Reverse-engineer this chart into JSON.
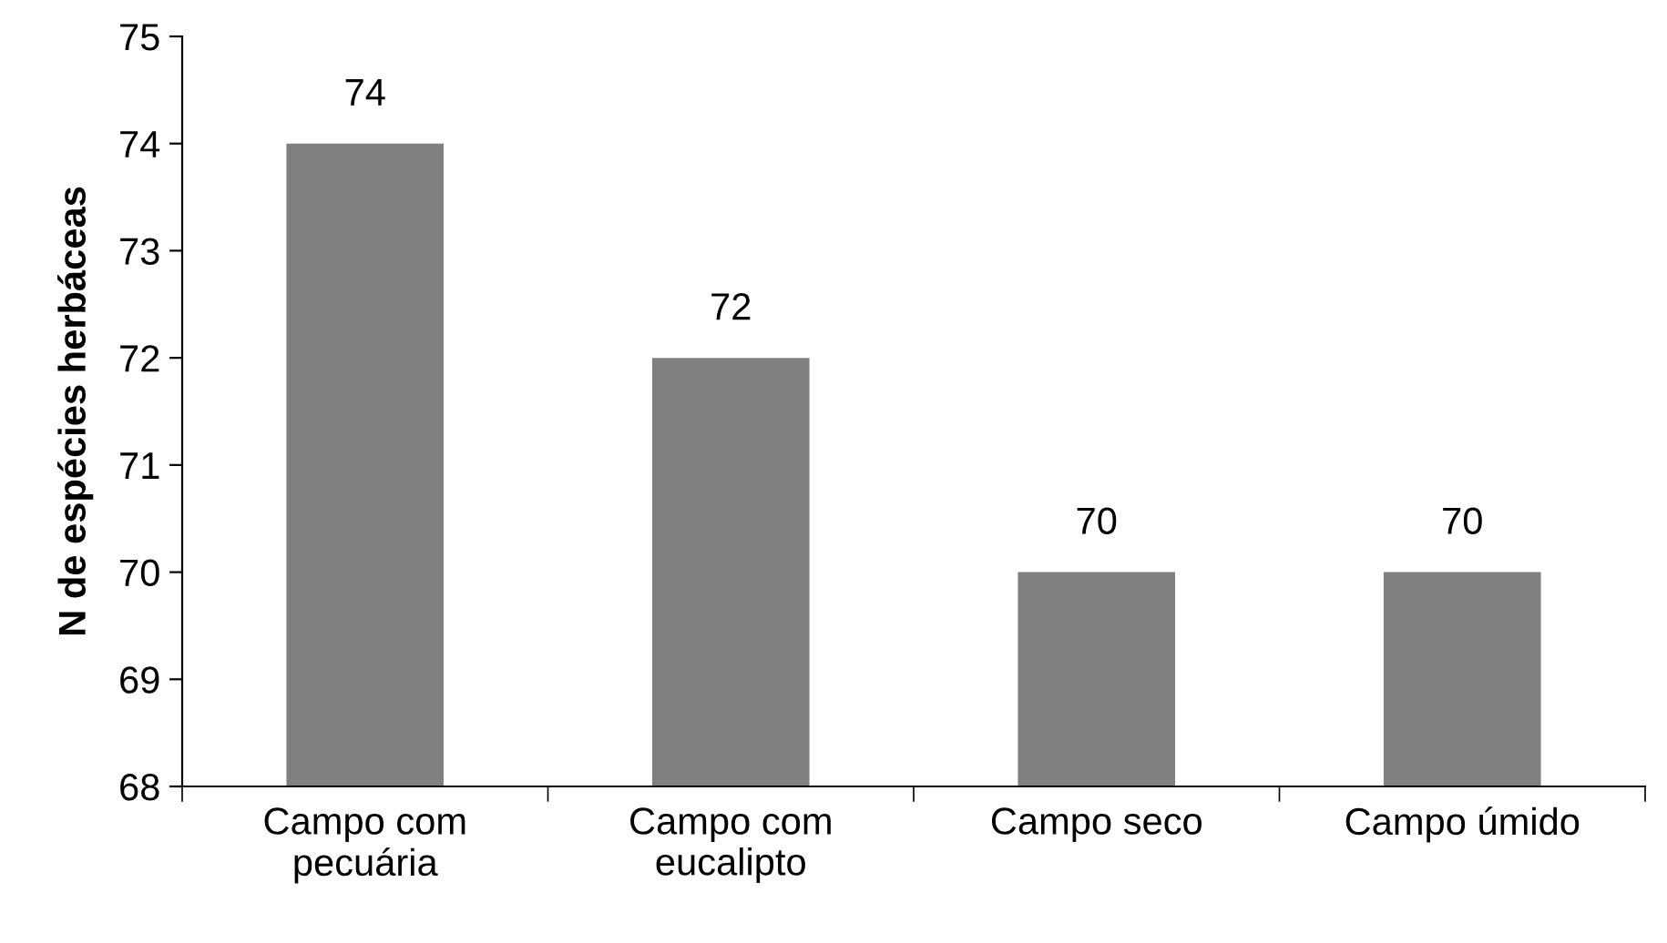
{
  "chart_data": {
    "type": "bar",
    "ylabel": "N de espécies herbáceas",
    "categories": [
      "Campo com\npecuária",
      "Campo com\neucalipto",
      "Campo seco",
      "Campo úmido"
    ],
    "values": [
      74,
      72,
      70,
      70
    ],
    "color": "#808080",
    "ylim": [
      68,
      75
    ],
    "yticks": [
      68,
      69,
      70,
      71,
      72,
      73,
      74,
      75
    ],
    "data_labels": true,
    "grid": false,
    "legend": false
  }
}
